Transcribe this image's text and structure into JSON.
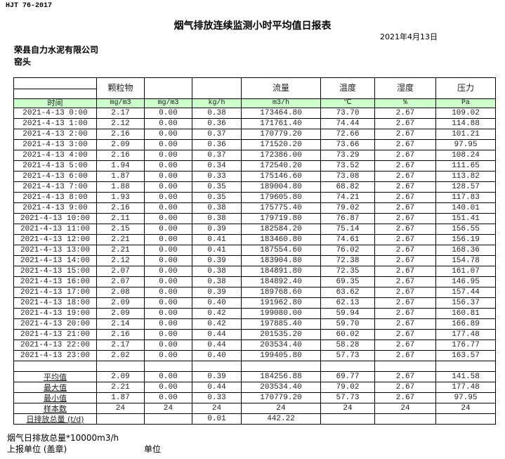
{
  "standard": "HJT  76-2017",
  "title": "烟气排放连续监测小时平均值日报表",
  "date": "2021年4月13日",
  "company": "荣县自力水泥有限公司",
  "site": "窑头",
  "header": [
    "",
    "颗粒物",
    "",
    "",
    "流量",
    "温度",
    "湿度",
    "压力"
  ],
  "units": [
    "时间",
    "mg/m3",
    "mg/m3",
    "kg/h",
    "m3/h",
    "℃",
    "%",
    "Pa"
  ],
  "rows": [
    [
      "2021-4-13 0:00",
      "2.17",
      "0.00",
      "0.38",
      "173464.80",
      "73.70",
      "2.67",
      "109.02"
    ],
    [
      "2021-4-13 1:00",
      "2.12",
      "0.00",
      "0.36",
      "171761.40",
      "74.44",
      "2.67",
      "114.88"
    ],
    [
      "2021-4-13 2:00",
      "2.16",
      "0.00",
      "0.37",
      "170779.20",
      "72.66",
      "2.67",
      "101.21"
    ],
    [
      "2021-4-13 3:00",
      "2.09",
      "0.00",
      "0.36",
      "171520.20",
      "73.66",
      "2.67",
      "97.95"
    ],
    [
      "2021-4-13 4:00",
      "2.16",
      "0.00",
      "0.37",
      "172386.00",
      "73.29",
      "2.67",
      "108.24"
    ],
    [
      "2021-4-13 5:00",
      "1.94",
      "0.00",
      "0.34",
      "172540.20",
      "73.52",
      "2.67",
      "111.65"
    ],
    [
      "2021-4-13 6:00",
      "1.87",
      "0.00",
      "0.33",
      "175146.60",
      "73.08",
      "2.67",
      "113.82"
    ],
    [
      "2021-4-13 7:00",
      "1.88",
      "0.00",
      "0.35",
      "189004.80",
      "68.82",
      "2.67",
      "128.57"
    ],
    [
      "2021-4-13 8:00",
      "1.93",
      "0.00",
      "0.35",
      "179605.80",
      "74.21",
      "2.67",
      "117.83"
    ],
    [
      "2021-4-13 9:00",
      "2.16",
      "0.00",
      "0.38",
      "175775.40",
      "79.02",
      "2.67",
      "140.01"
    ],
    [
      "2021-4-13 10:00",
      "2.11",
      "0.00",
      "0.38",
      "179719.80",
      "76.87",
      "2.67",
      "151.41"
    ],
    [
      "2021-4-13 11:00",
      "2.15",
      "0.00",
      "0.39",
      "182584.20",
      "75.14",
      "2.67",
      "156.55"
    ],
    [
      "2021-4-13 12:00",
      "2.21",
      "0.00",
      "0.41",
      "183460.80",
      "74.61",
      "2.67",
      "156.19"
    ],
    [
      "2021-4-13 13:00",
      "2.21",
      "0.00",
      "0.41",
      "187554.60",
      "76.02",
      "2.67",
      "168.36"
    ],
    [
      "2021-4-13 14:00",
      "2.12",
      "0.00",
      "0.39",
      "183904.80",
      "72.38",
      "2.67",
      "154.78"
    ],
    [
      "2021-4-13 15:00",
      "2.07",
      "0.00",
      "0.38",
      "184891.80",
      "72.35",
      "2.67",
      "161.07"
    ],
    [
      "2021-4-13 16:00",
      "2.07",
      "0.00",
      "0.38",
      "184892.40",
      "69.35",
      "2.67",
      "146.95"
    ],
    [
      "2021-4-13 17:00",
      "2.08",
      "0.00",
      "0.39",
      "189768.60",
      "63.62",
      "2.67",
      "157.44"
    ],
    [
      "2021-4-13 18:00",
      "2.09",
      "0.00",
      "0.40",
      "191962.80",
      "62.13",
      "2.67",
      "156.37"
    ],
    [
      "2021-4-13 19:00",
      "2.09",
      "0.00",
      "0.42",
      "199080.00",
      "59.94",
      "2.67",
      "160.81"
    ],
    [
      "2021-4-13 20:00",
      "2.14",
      "0.00",
      "0.42",
      "197885.40",
      "59.70",
      "2.67",
      "166.89"
    ],
    [
      "2021-4-13 21:00",
      "2.16",
      "0.00",
      "0.44",
      "201535.20",
      "60.02",
      "2.67",
      "177.48"
    ],
    [
      "2021-4-13 22:00",
      "2.17",
      "0.00",
      "0.44",
      "203534.40",
      "58.28",
      "2.67",
      "176.77"
    ],
    [
      "2021-4-13 23:00",
      "2.02",
      "0.00",
      "0.40",
      "199405.80",
      "57.73",
      "2.67",
      "163.57"
    ]
  ],
  "stats": [
    [
      "平均值",
      "2.09",
      "0.00",
      "0.39",
      "184256.88",
      "69.77",
      "2.67",
      "141.58"
    ],
    [
      "最大值",
      "2.21",
      "0.00",
      "0.44",
      "203534.40",
      "79.02",
      "2.67",
      "177.48"
    ],
    [
      "最小值",
      "1.87",
      "0.00",
      "0.33",
      "170779.20",
      "57.73",
      "2.67",
      "97.95"
    ],
    [
      "样本数",
      "24",
      "24",
      "24",
      "24",
      "24",
      "24",
      "24"
    ],
    [
      "日排放总量 (t/d)",
      "",
      "",
      "0.01",
      "442.22",
      "",
      "",
      ""
    ]
  ],
  "footer": {
    "note": "烟气日排放总量*10000m3/h",
    "report_unit": "上报单位 (盖章)",
    "unit": "单位"
  },
  "colors": {
    "unit_row_bg": "#ccffcc"
  }
}
